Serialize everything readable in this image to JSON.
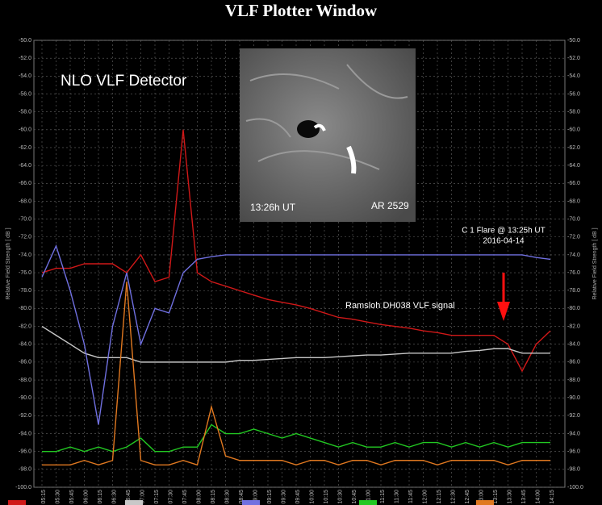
{
  "chart_data": {
    "type": "line",
    "title": "VLF Plotter Window",
    "ylabel": "Relative Field Strength [ dB ]",
    "header": "NLO VLF Detector",
    "inset_labels": [
      "13:26h UT",
      "AR 2529"
    ],
    "annotations": [
      "C 1 Flare @ 13:25h UT",
      "2016-04-14",
      "Ramsloh DH038 VLF signal"
    ],
    "x": [
      "05:15",
      "05:30",
      "05:45",
      "06:00",
      "06:15",
      "06:30",
      "06:45",
      "07:00",
      "07:15",
      "07:30",
      "07:45",
      "08:00",
      "08:15",
      "08:30",
      "08:45",
      "09:00",
      "09:15",
      "09:30",
      "09:45",
      "10:00",
      "10:15",
      "10:30",
      "10:45",
      "11:00",
      "11:15",
      "11:30",
      "11:45",
      "12:00",
      "12:15",
      "12:30",
      "12:45",
      "13:00",
      "13:15",
      "13:30",
      "13:45",
      "14:00",
      "14:15"
    ],
    "series": [
      {
        "color": "#d01818",
        "values": [
          -76,
          -75.5,
          -75.5,
          -75,
          -75,
          -75,
          -76,
          -74,
          -77,
          -76.5,
          -60,
          -76,
          -77,
          -77.5,
          -78,
          -78.5,
          -79,
          -79.3,
          -79.6,
          -80,
          -80.5,
          -81,
          -81.2,
          -81.5,
          -81.8,
          -82,
          -82.2,
          -82.5,
          -82.7,
          -83,
          -83,
          -83,
          -83,
          -84,
          -87,
          -84,
          -82.5
        ]
      },
      {
        "color": "#c8c8c8",
        "values": [
          -82,
          -83,
          -84,
          -85,
          -85.5,
          -85.5,
          -85.5,
          -86,
          -86,
          -86,
          -86,
          -86,
          -86,
          -86,
          -85.8,
          -85.8,
          -85.7,
          -85.6,
          -85.5,
          -85.5,
          -85.5,
          -85.4,
          -85.3,
          -85.2,
          -85.2,
          -85.1,
          -85,
          -85,
          -85,
          -85,
          -84.8,
          -84.7,
          -84.5,
          -84.5,
          -85,
          -85,
          -85
        ]
      },
      {
        "color": "#7070e0",
        "values": [
          -76.5,
          -73,
          -78,
          -84,
          -93,
          -82,
          -76,
          -84,
          -80,
          -80.5,
          -76,
          -74.5,
          -74.2,
          -74,
          -74,
          -74,
          -74,
          -74,
          -74,
          -74,
          -74,
          -74,
          -74,
          -74,
          -74,
          -74,
          -74,
          -74,
          -74,
          -74,
          -74,
          -74,
          -74,
          -74,
          -74,
          -74.3,
          -74.5
        ]
      },
      {
        "color": "#22c822",
        "values": [
          -96,
          -96,
          -95.5,
          -96,
          -95.5,
          -96,
          -95.5,
          -94.5,
          -96,
          -96,
          -95.5,
          -95.5,
          -93,
          -94,
          -94,
          -93.5,
          -94,
          -94.5,
          -94,
          -94.5,
          -95,
          -95.5,
          -95,
          -95.5,
          -95.5,
          -95,
          -95.5,
          -95,
          -95,
          -95.5,
          -95,
          -95.5,
          -95,
          -95.5,
          -95,
          -95,
          -95
        ]
      },
      {
        "color": "#e07820",
        "values": [
          -97.5,
          -97.5,
          -97.5,
          -97,
          -97.5,
          -97,
          -77,
          -97,
          -97.5,
          -97.5,
          -97,
          -97.5,
          -91,
          -96.5,
          -97,
          -97,
          -97,
          -97,
          -97.5,
          -97,
          -97,
          -97.5,
          -97,
          -97,
          -97.5,
          -97,
          -97,
          -97,
          -97.5,
          -97,
          -97,
          -97,
          -97,
          -97.5,
          -97,
          -97,
          -97
        ]
      }
    ],
    "ylim": [
      -100,
      -50
    ],
    "yticks": [
      {
        "value": -50,
        "label": "-50.0"
      },
      {
        "value": -52,
        "label": "-52.0"
      },
      {
        "value": -54,
        "label": "-54.0"
      },
      {
        "value": -56,
        "label": "-56.0"
      },
      {
        "value": -58,
        "label": "-58.0"
      },
      {
        "value": -60,
        "label": "-60.0"
      },
      {
        "value": -62,
        "label": "-62.0"
      },
      {
        "value": -64,
        "label": "-64.0"
      },
      {
        "value": -66,
        "label": "-66.0"
      },
      {
        "value": -68,
        "label": "-68.0"
      },
      {
        "value": -70,
        "label": "-70.0"
      },
      {
        "value": -72,
        "label": "-72.0"
      },
      {
        "value": -74,
        "label": "-74.0"
      },
      {
        "value": -76,
        "label": "-76.0"
      },
      {
        "value": -78,
        "label": "-78.0"
      },
      {
        "value": -80,
        "label": "-80.0"
      },
      {
        "value": -82,
        "label": "-82.0"
      },
      {
        "value": -84,
        "label": "-84.0"
      },
      {
        "value": -86,
        "label": "-86.0"
      },
      {
        "value": -88,
        "label": "-88.0"
      },
      {
        "value": -90,
        "label": "-90.0"
      },
      {
        "value": -92,
        "label": "-92.0"
      },
      {
        "value": -94,
        "label": "-94.0"
      },
      {
        "value": -96,
        "label": "-96.0"
      },
      {
        "value": -98,
        "label": "-98.0"
      },
      {
        "value": -100,
        "label": "-100.0"
      }
    ],
    "grid": true
  }
}
